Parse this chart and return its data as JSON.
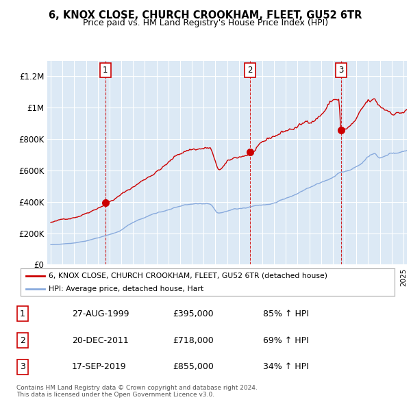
{
  "title": "6, KNOX CLOSE, CHURCH CROOKHAM, FLEET, GU52 6TR",
  "subtitle": "Price paid vs. HM Land Registry's House Price Index (HPI)",
  "background_color": "#dce9f5",
  "red_line_color": "#cc0000",
  "blue_line_color": "#88aadd",
  "sale_marker_color": "#cc0000",
  "dashed_line_color": "#cc0000",
  "transaction_label_border": "#cc0000",
  "legend_red_label": "6, KNOX CLOSE, CHURCH CROOKHAM, FLEET, GU52 6TR (detached house)",
  "legend_blue_label": "HPI: Average price, detached house, Hart",
  "footer": "Contains HM Land Registry data © Crown copyright and database right 2024.\nThis data is licensed under the Open Government Licence v3.0.",
  "ylim": [
    0,
    1300000
  ],
  "yticks": [
    0,
    200000,
    400000,
    600000,
    800000,
    1000000,
    1200000
  ],
  "ytick_labels": [
    "£0",
    "£200K",
    "£400K",
    "£600K",
    "£800K",
    "£1M",
    "£1.2M"
  ],
  "x_start_year": 1995,
  "x_end_year": 2025,
  "sale_years": [
    1999.646,
    2011.958,
    2019.708
  ],
  "sale_prices": [
    395000,
    718000,
    855000
  ],
  "table_data": [
    [
      "1",
      "27-AUG-1999",
      "£395,000",
      "85% ↑ HPI"
    ],
    [
      "2",
      "20-DEC-2011",
      "£718,000",
      "69% ↑ HPI"
    ],
    [
      "3",
      "17-SEP-2019",
      "£855,000",
      "34% ↑ HPI"
    ]
  ]
}
